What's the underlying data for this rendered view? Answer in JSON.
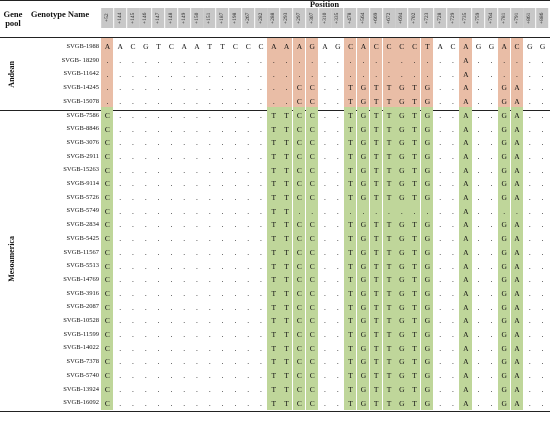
{
  "headers": {
    "gene_pool": "Gene pool",
    "genotype_name": "Genotype Name",
    "position": "Position"
  },
  "colors": {
    "andean": "#e9bda6",
    "meso": "#bfd69a",
    "header": "#c8c8c8"
  },
  "positions": [
    "+52",
    "+144",
    "+145",
    "+146",
    "+147",
    "+148",
    "+149",
    "+150",
    "+151",
    "+187",
    "+198",
    "+267",
    "+282",
    "+288",
    "+293",
    "+297",
    "+307",
    "+310",
    "+335",
    "+478",
    "+564",
    "+669",
    "+672",
    "+694",
    "+702",
    "+723",
    "+728",
    "+729",
    "+735",
    "+759",
    "+764",
    "+781",
    "+791",
    "+861",
    "+886"
  ],
  "groups": [
    {
      "name": "Andean",
      "rows": [
        {
          "name": "SVGB-1988",
          "cells": [
            "A",
            "A",
            "C",
            "G",
            "T",
            "C",
            "A",
            "A",
            "T",
            "T",
            "C",
            "C",
            "C",
            "A",
            "A",
            "A",
            "G",
            "A",
            "G",
            "C",
            "A",
            "C",
            "C",
            "C",
            "C",
            "T",
            "A",
            "C",
            "A",
            "G",
            "G",
            "A",
            "C",
            "G",
            "G"
          ]
        },
        {
          "name": "SVGB- 18290",
          "cells": [
            ".",
            ".",
            ".",
            ".",
            ".",
            ".",
            ".",
            ".",
            ".",
            ".",
            ".",
            ".",
            ".",
            ".",
            ".",
            ".",
            ".",
            ".",
            ".",
            ".",
            ".",
            ".",
            ".",
            ".",
            ".",
            ".",
            ".",
            ".",
            "A",
            ".",
            ".",
            ".",
            ".",
            ".",
            "."
          ]
        },
        {
          "name": "SVGB-11642",
          "cells": [
            ".",
            ".",
            ".",
            ".",
            ".",
            ".",
            ".",
            ".",
            ".",
            ".",
            ".",
            ".",
            ".",
            ".",
            ".",
            ".",
            ".",
            ".",
            ".",
            ".",
            ".",
            ".",
            ".",
            ".",
            ".",
            ".",
            ".",
            ".",
            "A",
            ".",
            ".",
            ".",
            ".",
            ".",
            "."
          ]
        },
        {
          "name": "SVGB-14245",
          "cells": [
            ".",
            ".",
            ".",
            ".",
            ".",
            ".",
            ".",
            ".",
            ".",
            ".",
            ".",
            ".",
            ".",
            ".",
            ".",
            "C",
            "C",
            ".",
            ".",
            "T",
            "G",
            "T",
            "T",
            "G",
            "T",
            "G",
            ".",
            ".",
            "A",
            ".",
            ".",
            "G",
            "A",
            ".",
            "."
          ]
        },
        {
          "name": "SVGB-15078",
          "cells": [
            ".",
            ".",
            ".",
            ".",
            ".",
            ".",
            ".",
            ".",
            ".",
            ".",
            ".",
            ".",
            ".",
            ".",
            ".",
            "C",
            "C",
            ".",
            ".",
            "T",
            "G",
            "T",
            "T",
            "G",
            "T",
            "G",
            ".",
            ".",
            "A",
            ".",
            ".",
            "G",
            "A",
            ".",
            "."
          ]
        }
      ]
    },
    {
      "name": "Mesoamerica",
      "rows": [
        {
          "name": "SVGB-7586",
          "cells": [
            "C",
            ".",
            ".",
            ".",
            ".",
            ".",
            ".",
            ".",
            ".",
            ".",
            ".",
            ".",
            ".",
            "T",
            "T",
            "C",
            "C",
            ".",
            ".",
            "T",
            "G",
            "T",
            "T",
            "G",
            "T",
            "G",
            ".",
            ".",
            "A",
            ".",
            ".",
            "G",
            "A",
            ".",
            "."
          ]
        },
        {
          "name": "SVGB-8846",
          "cells": [
            "C",
            ".",
            ".",
            ".",
            ".",
            ".",
            ".",
            ".",
            ".",
            ".",
            ".",
            ".",
            ".",
            "T",
            "T",
            "C",
            "C",
            ".",
            ".",
            "T",
            "G",
            "T",
            "T",
            "G",
            "T",
            "G",
            ".",
            ".",
            "A",
            ".",
            ".",
            "G",
            "A",
            ".",
            "."
          ]
        },
        {
          "name": "SVGB-3076",
          "cells": [
            "C",
            ".",
            ".",
            ".",
            ".",
            ".",
            ".",
            ".",
            ".",
            ".",
            ".",
            ".",
            ".",
            "T",
            "T",
            "C",
            "C",
            ".",
            ".",
            "T",
            "G",
            "T",
            "T",
            "G",
            "T",
            "G",
            ".",
            ".",
            "A",
            ".",
            ".",
            "G",
            "A",
            ".",
            "."
          ]
        },
        {
          "name": "SVGB-2911",
          "cells": [
            "C",
            ".",
            ".",
            ".",
            ".",
            ".",
            ".",
            ".",
            ".",
            ".",
            ".",
            ".",
            ".",
            "T",
            "T",
            "C",
            "C",
            ".",
            ".",
            "T",
            "G",
            "T",
            "T",
            "G",
            "T",
            "G",
            ".",
            ".",
            "A",
            ".",
            ".",
            "G",
            "A",
            ".",
            "."
          ]
        },
        {
          "name": "SVGB-15263",
          "cells": [
            "C",
            ".",
            ".",
            ".",
            ".",
            ".",
            ".",
            ".",
            ".",
            ".",
            ".",
            ".",
            ".",
            "T",
            "T",
            "C",
            "C",
            ".",
            ".",
            "T",
            "G",
            "T",
            "T",
            "G",
            "T",
            "G",
            ".",
            ".",
            "A",
            ".",
            ".",
            "G",
            "A",
            ".",
            "."
          ]
        },
        {
          "name": "SVGB-9114",
          "cells": [
            "C",
            ".",
            ".",
            ".",
            ".",
            ".",
            ".",
            ".",
            ".",
            ".",
            ".",
            ".",
            ".",
            "T",
            "T",
            "C",
            "C",
            ".",
            ".",
            "T",
            "G",
            "T",
            "T",
            "G",
            "T",
            "G",
            ".",
            ".",
            "A",
            ".",
            ".",
            "G",
            "A",
            ".",
            "."
          ]
        },
        {
          "name": "SVGB-5726",
          "cells": [
            "C",
            ".",
            ".",
            ".",
            ".",
            ".",
            ".",
            ".",
            ".",
            ".",
            ".",
            ".",
            ".",
            "T",
            "T",
            "C",
            "C",
            ".",
            ".",
            "T",
            "G",
            "T",
            "T",
            "G",
            "T",
            "G",
            ".",
            ".",
            "A",
            ".",
            ".",
            "G",
            "A",
            ".",
            "."
          ]
        },
        {
          "name": "SVGB-5749",
          "cells": [
            "C",
            ".",
            ".",
            ".",
            ".",
            ".",
            ".",
            ".",
            ".",
            ".",
            ".",
            ".",
            ".",
            "T",
            "T",
            ".",
            ".",
            ".",
            ".",
            ".",
            ".",
            ".",
            ".",
            ".",
            ".",
            ".",
            ".",
            ".",
            "A",
            ".",
            ".",
            ".",
            ".",
            ".",
            "."
          ]
        },
        {
          "name": "SVGB-2834",
          "cells": [
            "C",
            ".",
            ".",
            ".",
            ".",
            ".",
            ".",
            ".",
            ".",
            ".",
            ".",
            ".",
            ".",
            "T",
            "T",
            "C",
            "C",
            ".",
            ".",
            "T",
            "G",
            "T",
            "T",
            "G",
            "T",
            "G",
            ".",
            ".",
            "A",
            ".",
            ".",
            "G",
            "A",
            ".",
            "."
          ]
        },
        {
          "name": "SVGB-5425",
          "cells": [
            "C",
            ".",
            ".",
            ".",
            ".",
            ".",
            ".",
            ".",
            ".",
            ".",
            ".",
            ".",
            ".",
            "T",
            "T",
            "C",
            "C",
            ".",
            ".",
            "T",
            "G",
            "T",
            "T",
            "G",
            "T",
            "G",
            ".",
            ".",
            "A",
            ".",
            ".",
            "G",
            "A",
            ".",
            "."
          ]
        },
        {
          "name": "SVGB-11567",
          "cells": [
            "C",
            ".",
            ".",
            ".",
            ".",
            ".",
            ".",
            ".",
            ".",
            ".",
            ".",
            ".",
            ".",
            "T",
            "T",
            "C",
            "C",
            ".",
            ".",
            "T",
            "G",
            "T",
            "T",
            "G",
            "T",
            "G",
            ".",
            ".",
            "A",
            ".",
            ".",
            "G",
            "A",
            ".",
            "."
          ]
        },
        {
          "name": "SVGB-5513",
          "cells": [
            "C",
            ".",
            ".",
            ".",
            ".",
            ".",
            ".",
            ".",
            ".",
            ".",
            ".",
            ".",
            ".",
            "T",
            "T",
            "C",
            "C",
            ".",
            ".",
            "T",
            "G",
            "T",
            "T",
            "G",
            "T",
            "G",
            ".",
            ".",
            "A",
            ".",
            ".",
            "G",
            "A",
            ".",
            "."
          ]
        },
        {
          "name": "SVGB-14769",
          "cells": [
            "C",
            ".",
            ".",
            ".",
            ".",
            ".",
            ".",
            ".",
            ".",
            ".",
            ".",
            ".",
            ".",
            "T",
            "T",
            "C",
            "C",
            ".",
            ".",
            "T",
            "G",
            "T",
            "T",
            "G",
            "T",
            "G",
            ".",
            ".",
            "A",
            ".",
            ".",
            "G",
            "A",
            ".",
            "."
          ]
        },
        {
          "name": "SVGB-3916",
          "cells": [
            "C",
            ".",
            ".",
            ".",
            ".",
            ".",
            ".",
            ".",
            ".",
            ".",
            ".",
            ".",
            ".",
            "T",
            "T",
            "C",
            "C",
            ".",
            ".",
            "T",
            "G",
            "T",
            "T",
            "G",
            "T",
            "G",
            ".",
            ".",
            "A",
            ".",
            ".",
            "G",
            "A",
            ".",
            "."
          ]
        },
        {
          "name": "SVGB-2087",
          "cells": [
            "C",
            ".",
            ".",
            ".",
            ".",
            ".",
            ".",
            ".",
            ".",
            ".",
            ".",
            ".",
            ".",
            "T",
            "T",
            "C",
            "C",
            ".",
            ".",
            "T",
            "G",
            "T",
            "T",
            "G",
            "T",
            "G",
            ".",
            ".",
            "A",
            ".",
            ".",
            "G",
            "A",
            ".",
            "."
          ]
        },
        {
          "name": "SVGB-10528",
          "cells": [
            "C",
            ".",
            ".",
            ".",
            ".",
            ".",
            ".",
            ".",
            ".",
            ".",
            ".",
            ".",
            ".",
            "T",
            "T",
            "C",
            "C",
            ".",
            ".",
            "T",
            "G",
            "T",
            "T",
            "G",
            "T",
            "G",
            ".",
            ".",
            "A",
            ".",
            ".",
            "G",
            "A",
            ".",
            "."
          ]
        },
        {
          "name": "SVGB-11599",
          "cells": [
            "C",
            ".",
            ".",
            ".",
            ".",
            ".",
            ".",
            ".",
            ".",
            ".",
            ".",
            ".",
            ".",
            "T",
            "T",
            "C",
            "C",
            ".",
            ".",
            "T",
            "G",
            "T",
            "T",
            "G",
            "T",
            "G",
            ".",
            ".",
            "A",
            ".",
            ".",
            "G",
            "A",
            ".",
            "."
          ]
        },
        {
          "name": "SVGB-14022",
          "cells": [
            "C",
            ".",
            ".",
            ".",
            ".",
            ".",
            ".",
            ".",
            ".",
            ".",
            ".",
            ".",
            ".",
            "T",
            "T",
            "C",
            "C",
            ".",
            ".",
            "T",
            "G",
            "T",
            "T",
            "G",
            "T",
            "G",
            ".",
            ".",
            "A",
            ".",
            ".",
            "G",
            "A",
            ".",
            "."
          ]
        },
        {
          "name": "SVGB-7378",
          "cells": [
            "C",
            ".",
            ".",
            ".",
            ".",
            ".",
            ".",
            ".",
            ".",
            ".",
            ".",
            ".",
            ".",
            "T",
            "T",
            "C",
            "C",
            ".",
            ".",
            "T",
            "G",
            "T",
            "T",
            "G",
            "T",
            "G",
            ".",
            ".",
            "A",
            ".",
            ".",
            "G",
            "A",
            ".",
            "."
          ]
        },
        {
          "name": "SVGB-5740",
          "cells": [
            "C",
            ".",
            ".",
            ".",
            ".",
            ".",
            ".",
            ".",
            ".",
            ".",
            ".",
            ".",
            ".",
            "T",
            "T",
            "C",
            "C",
            ".",
            ".",
            "T",
            "G",
            "T",
            "T",
            "G",
            "T",
            "G",
            ".",
            ".",
            "A",
            ".",
            ".",
            "G",
            "A",
            ".",
            "."
          ]
        },
        {
          "name": "SVGB-13924",
          "cells": [
            "C",
            ".",
            ".",
            ".",
            ".",
            ".",
            ".",
            ".",
            ".",
            ".",
            ".",
            ".",
            ".",
            "T",
            "T",
            "C",
            "C",
            ".",
            ".",
            "T",
            "G",
            "T",
            "T",
            "G",
            "T",
            "G",
            ".",
            ".",
            "A",
            ".",
            ".",
            "G",
            "A",
            ".",
            "."
          ]
        },
        {
          "name": "SVGB-16092",
          "cells": [
            "C",
            ".",
            ".",
            ".",
            ".",
            ".",
            ".",
            ".",
            ".",
            ".",
            ".",
            ".",
            ".",
            "T",
            "T",
            "C",
            "C",
            ".",
            ".",
            "T",
            "G",
            "T",
            "T",
            "G",
            "T",
            "G",
            ".",
            ".",
            "A",
            ".",
            ".",
            "G",
            "A",
            ".",
            "."
          ]
        }
      ]
    }
  ]
}
